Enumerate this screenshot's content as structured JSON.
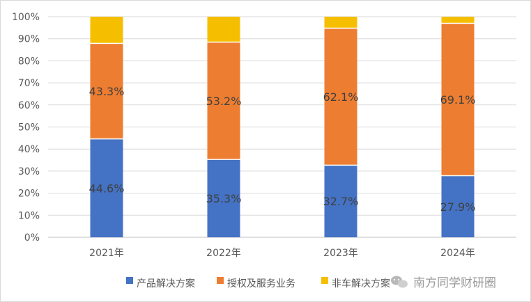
{
  "chart_data": {
    "type": "bar",
    "stacked": true,
    "percent_stacked": true,
    "categories": [
      "2021年",
      "2022年",
      "2023年",
      "2024年"
    ],
    "series": [
      {
        "name": "产品解决方案",
        "values": [
          44.6,
          35.3,
          32.7,
          27.9
        ],
        "color": "#4472c4",
        "show_labels": true
      },
      {
        "name": "授权及服务业务",
        "values": [
          43.3,
          53.2,
          62.1,
          69.1
        ],
        "color": "#ed7d31",
        "show_labels": true
      },
      {
        "name": "非车解决方案",
        "values": [
          12.1,
          11.5,
          5.2,
          3.0
        ],
        "color": "#f5bf00",
        "show_labels": false
      }
    ],
    "yticks": [
      "0%",
      "10%",
      "20%",
      "30%",
      "40%",
      "50%",
      "60%",
      "70%",
      "80%",
      "90%",
      "100%"
    ],
    "ylim": [
      0,
      100
    ],
    "grid": true,
    "legend_position": "bottom"
  },
  "watermark": {
    "text": "南方同学财研圈",
    "icon": "wechat-bubble-icon"
  }
}
